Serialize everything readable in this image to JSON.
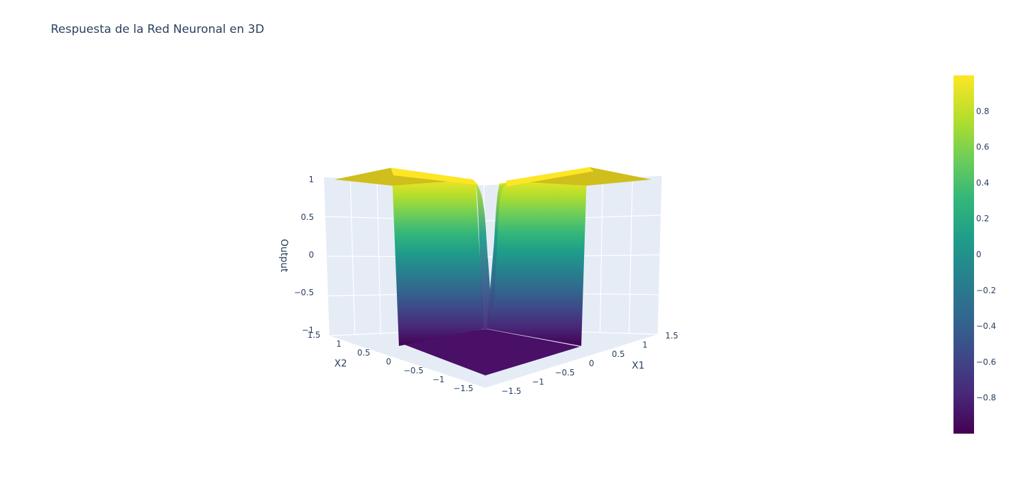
{
  "chart_data": {
    "type": "surface",
    "title": "Respuesta de la Red Neuronal en 3D",
    "colorscale": "Viridis",
    "scene": {
      "xaxis": {
        "title": "X1",
        "range": [
          -1.5,
          1.5
        ],
        "ticks": [
          -1.5,
          -1,
          -0.5,
          0,
          0.5,
          1,
          1.5
        ],
        "tick_labels": [
          "−1.5",
          "−1",
          "−0.5",
          "0",
          "0.5",
          "1",
          "1.5"
        ]
      },
      "yaxis": {
        "title": "X2",
        "range": [
          -1.5,
          1.5
        ],
        "ticks": [
          -1.5,
          -1,
          -0.5,
          0,
          0.5,
          1,
          1.5
        ],
        "tick_labels": [
          "−1.5",
          "−1",
          "−0.5",
          "0",
          "0.5",
          "1",
          "1.5"
        ]
      },
      "zaxis": {
        "title": "Output",
        "range": [
          -1,
          1
        ],
        "ticks": [
          -1,
          -0.5,
          0,
          0.5,
          1
        ],
        "tick_labels": [
          "−1",
          "−0.5",
          "0",
          "0.5",
          "1"
        ]
      },
      "background": "#e5ecf6",
      "grid": true
    },
    "surface": {
      "description_values": {
        "high_plateau_z": 1,
        "low_valley_z": -1,
        "transition_x1": -1,
        "transition_x2": -1
      }
    },
    "colorbar": {
      "range": [
        -1,
        1
      ],
      "ticks": [
        -0.8,
        -0.6,
        -0.4,
        -0.2,
        0,
        0.2,
        0.4,
        0.6,
        0.8
      ],
      "tick_labels": [
        "−0.8",
        "−0.6",
        "−0.4",
        "−0.2",
        "0",
        "0.2",
        "0.4",
        "0.6",
        "0.8"
      ]
    },
    "colors": {
      "viridis": [
        "#440154",
        "#482878",
        "#3e4989",
        "#31688e",
        "#26828e",
        "#1f9e89",
        "#35b779",
        "#6ece58",
        "#b5de2b",
        "#fde725"
      ],
      "plateau": "#cfbe1c",
      "floor": "#4a0f67"
    }
  }
}
